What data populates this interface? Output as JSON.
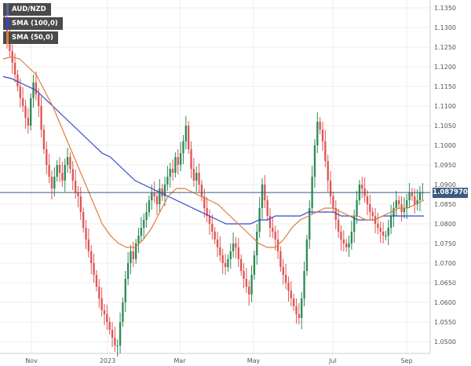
{
  "chart_data": {
    "type": "candlestick",
    "title": "AUD/NZD",
    "last_price": "1.087970",
    "legend": [
      {
        "name": "AUD/NZD",
        "color": "#4a6fa5"
      },
      {
        "name": "SMA (100,0)",
        "color": "#3344cc"
      },
      {
        "name": "SMA (50,0)",
        "color": "#e07b39"
      }
    ],
    "x_ticks": [
      "Nov",
      "2023",
      "Mar",
      "May",
      "Jul",
      "Sep"
    ],
    "y_ticks": [
      "1.1350",
      "1.1300",
      "1.1250",
      "1.1200",
      "1.1150",
      "1.1100",
      "1.1050",
      "1.1000",
      "1.0950",
      "1.0900",
      "1.0850",
      "1.0800",
      "1.0750",
      "1.0700",
      "1.0650",
      "1.0600",
      "1.0550",
      "1.0500"
    ],
    "ylim": [
      1.047,
      1.137
    ],
    "up_color": "#2e8b57",
    "down_color": "#e05555",
    "sma100_color": "#3344cc",
    "sma50_color": "#e07b39",
    "price_line_color": "#3a5a80",
    "close_series": [
      1.132,
      1.127,
      1.124,
      1.121,
      1.118,
      1.115,
      1.112,
      1.11,
      1.107,
      1.105,
      1.112,
      1.116,
      1.113,
      1.11,
      1.104,
      1.099,
      1.095,
      1.092,
      1.089,
      1.092,
      1.095,
      1.093,
      1.091,
      1.095,
      1.097,
      1.094,
      1.091,
      1.088,
      1.087,
      1.083,
      1.079,
      1.076,
      1.073,
      1.07,
      1.067,
      1.064,
      1.061,
      1.058,
      1.057,
      1.055,
      1.053,
      1.051,
      1.049,
      1.049,
      1.055,
      1.06,
      1.066,
      1.07,
      1.073,
      1.071,
      1.075,
      1.077,
      1.079,
      1.081,
      1.083,
      1.086,
      1.088,
      1.087,
      1.085,
      1.089,
      1.087,
      1.09,
      1.092,
      1.094,
      1.093,
      1.097,
      1.095,
      1.098,
      1.101,
      1.105,
      1.099,
      1.094,
      1.091,
      1.093,
      1.09,
      1.087,
      1.084,
      1.082,
      1.08,
      1.078,
      1.076,
      1.074,
      1.072,
      1.07,
      1.069,
      1.071,
      1.073,
      1.075,
      1.074,
      1.071,
      1.068,
      1.066,
      1.064,
      1.062,
      1.067,
      1.072,
      1.078,
      1.084,
      1.09,
      1.086,
      1.082,
      1.079,
      1.078,
      1.076,
      1.073,
      1.069,
      1.067,
      1.065,
      1.063,
      1.061,
      1.059,
      1.057,
      1.056,
      1.061,
      1.068,
      1.076,
      1.084,
      1.092,
      1.1,
      1.106,
      1.104,
      1.101,
      1.096,
      1.091,
      1.087,
      1.084,
      1.081,
      1.078,
      1.076,
      1.075,
      1.074,
      1.075,
      1.078,
      1.082,
      1.086,
      1.09,
      1.089,
      1.087,
      1.085,
      1.083,
      1.082,
      1.08,
      1.079,
      1.078,
      1.077,
      1.077,
      1.079,
      1.082,
      1.084,
      1.086,
      1.085,
      1.083,
      1.084,
      1.086,
      1.088,
      1.087,
      1.085,
      1.086,
      1.088,
      1.088
    ],
    "sma100_series": [
      1.1175,
      1.117,
      1.116,
      1.115,
      1.114,
      1.112,
      1.11,
      1.108,
      1.106,
      1.104,
      1.102,
      1.1,
      1.098,
      1.097,
      1.095,
      1.093,
      1.091,
      1.09,
      1.089,
      1.088,
      1.087,
      1.086,
      1.085,
      1.084,
      1.083,
      1.082,
      1.081,
      1.08,
      1.08,
      1.08,
      1.08,
      1.081,
      1.081,
      1.082,
      1.082,
      1.082,
      1.082,
      1.083,
      1.083,
      1.083,
      1.083,
      1.082,
      1.082,
      1.081,
      1.081,
      1.081,
      1.082,
      1.082,
      1.082,
      1.082,
      1.082,
      1.082
    ],
    "sma50_series": [
      1.122,
      1.1225,
      1.122,
      1.12,
      1.118,
      1.114,
      1.11,
      1.105,
      1.1,
      1.095,
      1.09,
      1.085,
      1.08,
      1.077,
      1.075,
      1.074,
      1.074,
      1.076,
      1.079,
      1.083,
      1.087,
      1.089,
      1.089,
      1.088,
      1.087,
      1.086,
      1.085,
      1.083,
      1.081,
      1.079,
      1.077,
      1.075,
      1.074,
      1.074,
      1.076,
      1.079,
      1.081,
      1.082,
      1.083,
      1.084,
      1.084,
      1.083,
      1.082,
      1.082,
      1.081,
      1.081,
      1.082,
      1.083,
      1.084,
      1.084,
      1.085,
      1.086
    ]
  }
}
